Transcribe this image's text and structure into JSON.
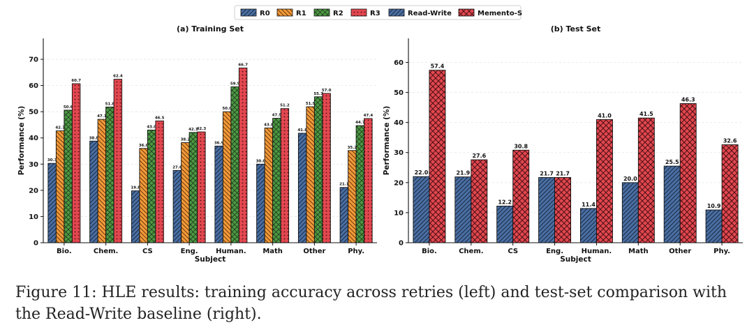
{
  "legend": [
    {
      "label": "R0",
      "color": "#4a6fa3",
      "pattern": "diag"
    },
    {
      "label": "R1",
      "color": "#f39a3a",
      "pattern": "diag"
    },
    {
      "label": "R2",
      "color": "#4e9a45",
      "pattern": "cross"
    },
    {
      "label": "R3",
      "color": "#e2474f",
      "pattern": "dots"
    },
    {
      "label": "Read-Write",
      "color": "#4a6fa3",
      "pattern": "diag"
    },
    {
      "label": "Memento-S",
      "color": "#e2474f",
      "pattern": "cross"
    }
  ],
  "chart_data": [
    {
      "type": "bar",
      "title": "(a) Training Set",
      "xlabel": "Subject",
      "ylabel": "Performance (%)",
      "ylim": [
        0,
        78
      ],
      "yticks": [
        0,
        10,
        20,
        30,
        40,
        50,
        60,
        70
      ],
      "categories": [
        "Bio.",
        "Chem.",
        "CS",
        "Eng.",
        "Human.",
        "Math",
        "Other",
        "Phy."
      ],
      "series": [
        {
          "name": "R0",
          "values": [
            30.3,
            38.8,
            19.8,
            27.6,
            36.9,
            30.0,
            41.8,
            21.1
          ]
        },
        {
          "name": "R1",
          "values": [
            42.7,
            47.1,
            36.0,
            38.2,
            50.0,
            43.8,
            51.9,
            35.2
          ]
        },
        {
          "name": "R2",
          "values": [
            50.6,
            51.8,
            43.0,
            42.1,
            59.5,
            47.5,
            55.7,
            44.7
          ]
        },
        {
          "name": "R3",
          "values": [
            60.7,
            62.4,
            46.5,
            42.3,
            66.7,
            51.2,
            57.0,
            47.4
          ]
        }
      ]
    },
    {
      "type": "bar",
      "title": "(b) Test Set",
      "xlabel": "Subject",
      "ylabel": "Performance (%)",
      "ylim": [
        0,
        68
      ],
      "yticks": [
        0,
        10,
        20,
        30,
        40,
        50,
        60
      ],
      "categories": [
        "Bio.",
        "Chem.",
        "CS",
        "Eng.",
        "Human.",
        "Math",
        "Other",
        "Phy."
      ],
      "series": [
        {
          "name": "Read-Write",
          "values": [
            22.0,
            21.9,
            12.2,
            21.7,
            11.4,
            20.0,
            25.5,
            10.9
          ]
        },
        {
          "name": "Memento-S",
          "values": [
            57.4,
            27.6,
            30.8,
            21.7,
            41.0,
            41.5,
            46.3,
            32.6
          ]
        }
      ]
    }
  ],
  "caption": "Figure 11: HLE results: training accuracy across retries (left) and test-set comparison with the Read-Write baseline (right)."
}
